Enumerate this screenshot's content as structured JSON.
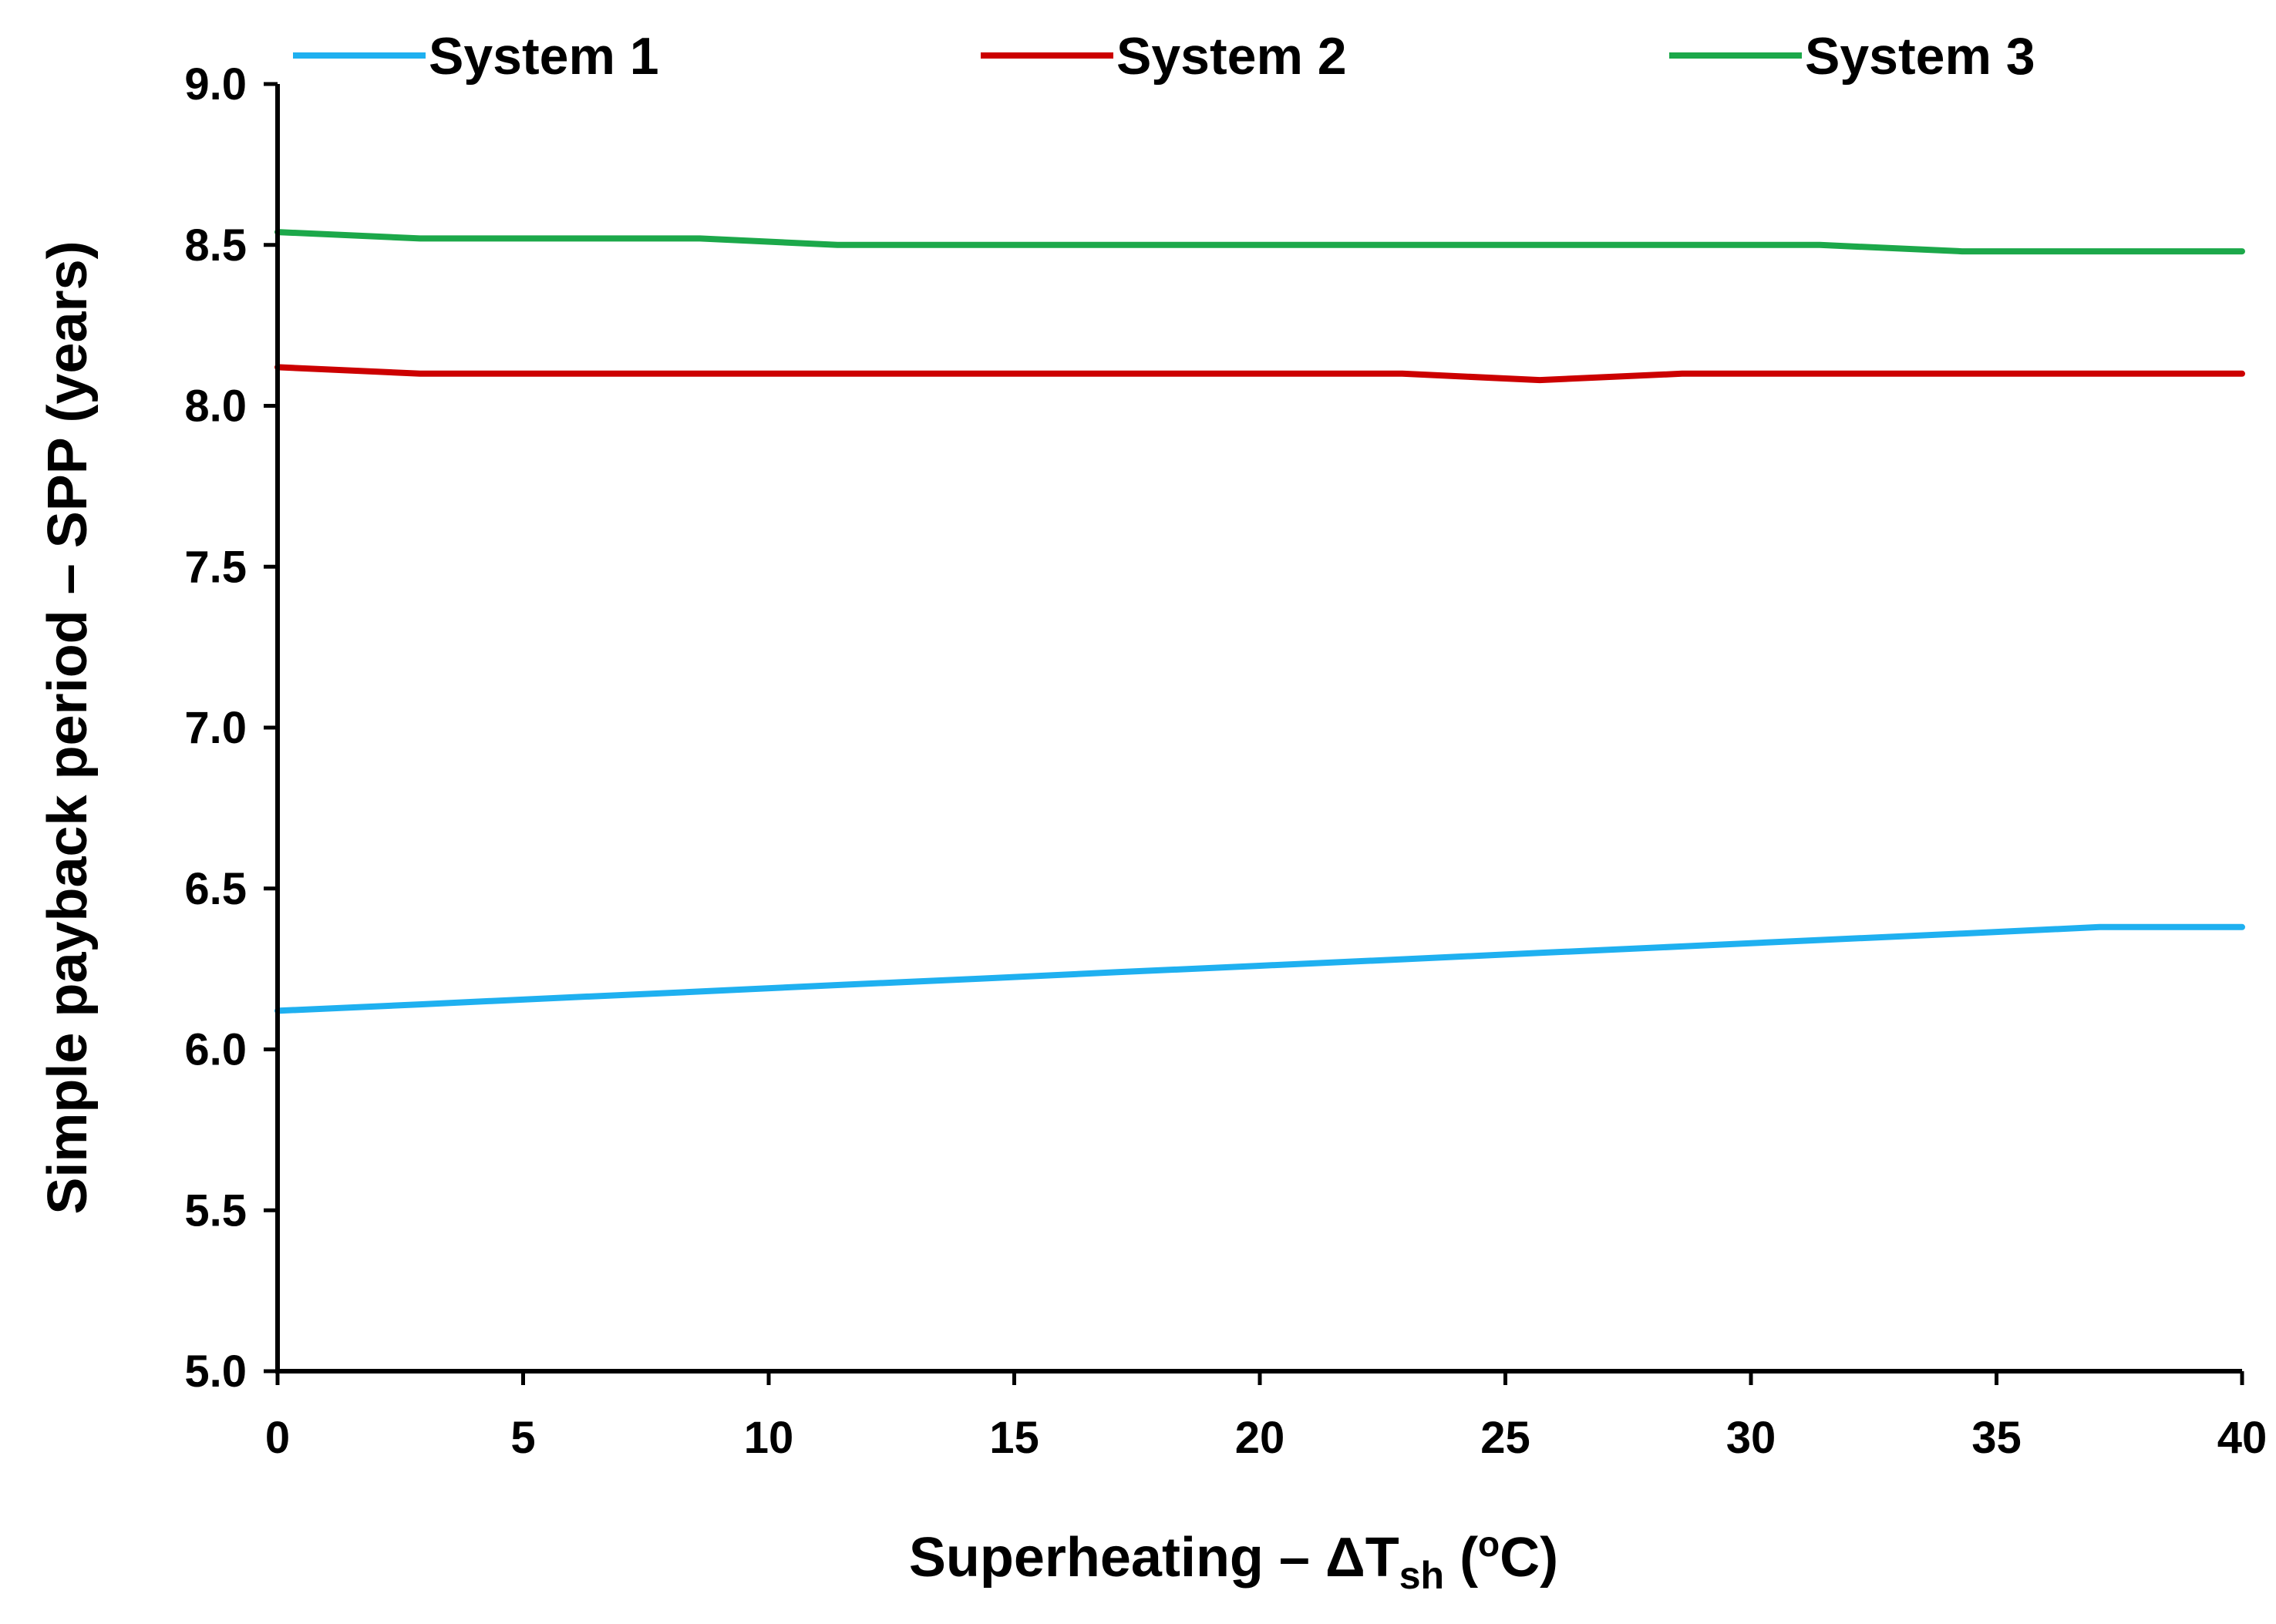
{
  "chart_data": {
    "type": "line",
    "title": "",
    "xlabel": {
      "main": "Superheating – ΔT",
      "sub": "sh",
      "unit_open": " (",
      "sup": "o",
      "unit_close": "C)"
    },
    "ylabel": "Simple payback period – SPP (years)",
    "xlim": [
      0,
      40
    ],
    "ylim": [
      5.0,
      9.0
    ],
    "xticks": [
      "0",
      "5",
      "10",
      "15",
      "20",
      "25",
      "30",
      "35",
      "40"
    ],
    "xtick_values": [
      0,
      5,
      10,
      15,
      20,
      25,
      30,
      35,
      40
    ],
    "yticks": [
      "5.0",
      "5.5",
      "6.0",
      "6.5",
      "7.0",
      "7.5",
      "8.0",
      "8.5",
      "9.0"
    ],
    "ytick_values": [
      5.0,
      5.5,
      6.0,
      6.5,
      7.0,
      7.5,
      8.0,
      8.5,
      9.0
    ],
    "grid": false,
    "legend_position": "top",
    "series": [
      {
        "name": "System 1",
        "color": "#1fb0f0",
        "x": [
          0,
          2.9,
          5.7,
          8.6,
          11.4,
          14.3,
          17.1,
          20.0,
          22.9,
          25.7,
          28.6,
          31.4,
          34.3,
          37.1,
          40.0
        ],
        "values": [
          6.12,
          6.14,
          6.16,
          6.18,
          6.2,
          6.22,
          6.24,
          6.26,
          6.28,
          6.3,
          6.32,
          6.34,
          6.36,
          6.38,
          6.38
        ]
      },
      {
        "name": "System 2",
        "color": "#cc0000",
        "x": [
          0,
          2.9,
          5.7,
          8.6,
          11.4,
          14.3,
          17.1,
          20.0,
          22.9,
          25.7,
          28.6,
          31.4,
          34.3,
          37.1,
          40.0
        ],
        "values": [
          8.12,
          8.1,
          8.1,
          8.1,
          8.1,
          8.1,
          8.1,
          8.1,
          8.1,
          8.08,
          8.1,
          8.1,
          8.1,
          8.1,
          8.1
        ]
      },
      {
        "name": "System 3",
        "color": "#1ca84a",
        "x": [
          0,
          2.9,
          5.7,
          8.6,
          11.4,
          14.3,
          17.1,
          20.0,
          22.9,
          25.7,
          28.6,
          31.4,
          34.3,
          37.1,
          40.0
        ],
        "values": [
          8.54,
          8.52,
          8.52,
          8.52,
          8.5,
          8.5,
          8.5,
          8.5,
          8.5,
          8.5,
          8.5,
          8.5,
          8.48,
          8.48,
          8.48
        ]
      }
    ]
  }
}
